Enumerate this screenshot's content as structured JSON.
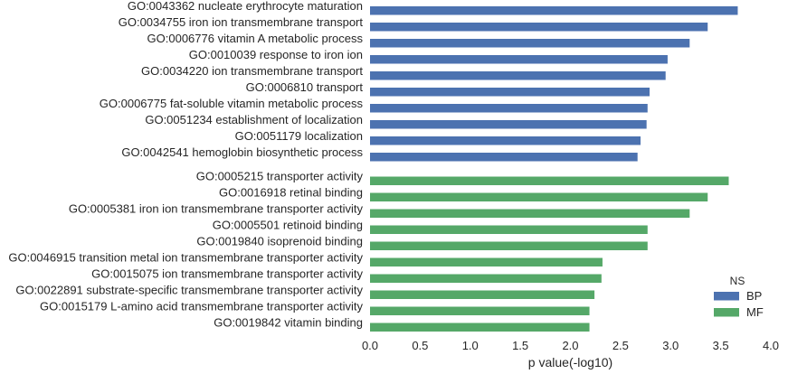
{
  "chart_data": {
    "type": "bar",
    "orientation": "horizontal",
    "xlabel": "p value(-log10)",
    "xlim": [
      0.0,
      4.0
    ],
    "xticks": [
      "0.0",
      "0.5",
      "1.0",
      "1.5",
      "2.0",
      "2.5",
      "3.0",
      "3.5",
      "4.0"
    ],
    "grid": false,
    "legend": {
      "title": "NS",
      "placement": "bottom-right",
      "entries": [
        {
          "name": "BP",
          "color": "#4c72b0"
        },
        {
          "name": "MF",
          "color": "#55a868"
        }
      ]
    },
    "bars": [
      {
        "label": "GO:0043362 nucleate erythrocyte maturation",
        "value": 3.67,
        "group": "BP"
      },
      {
        "label": "GO:0034755 iron ion transmembrane transport",
        "value": 3.37,
        "group": "BP"
      },
      {
        "label": "GO:0006776 vitamin A metabolic process",
        "value": 3.19,
        "group": "BP"
      },
      {
        "label": "GO:0010039 response to iron ion",
        "value": 2.97,
        "group": "BP"
      },
      {
        "label": "GO:0034220 ion transmembrane transport",
        "value": 2.95,
        "group": "BP"
      },
      {
        "label": "GO:0006810 transport",
        "value": 2.79,
        "group": "BP"
      },
      {
        "label": "GO:0006775 fat-soluble vitamin metabolic process",
        "value": 2.77,
        "group": "BP"
      },
      {
        "label": "GO:0051234 establishment of localization",
        "value": 2.76,
        "group": "BP"
      },
      {
        "label": "GO:0051179 localization",
        "value": 2.7,
        "group": "BP"
      },
      {
        "label": "GO:0042541 hemoglobin biosynthetic process",
        "value": 2.67,
        "group": "BP"
      },
      {
        "label": "GO:0005215 transporter activity",
        "value": 3.58,
        "group": "MF"
      },
      {
        "label": "GO:0016918 retinal binding",
        "value": 3.37,
        "group": "MF"
      },
      {
        "label": "GO:0005381 iron ion transmembrane transporter activity",
        "value": 3.19,
        "group": "MF"
      },
      {
        "label": "GO:0005501 retinoid binding",
        "value": 2.77,
        "group": "MF"
      },
      {
        "label": "GO:0019840 isoprenoid binding",
        "value": 2.77,
        "group": "MF"
      },
      {
        "label": "GO:0046915 transition metal ion transmembrane transporter activity",
        "value": 2.32,
        "group": "MF"
      },
      {
        "label": "GO:0015075 ion transmembrane transporter activity",
        "value": 2.31,
        "group": "MF"
      },
      {
        "label": "GO:0022891 substrate-specific transmembrane transporter activity",
        "value": 2.24,
        "group": "MF"
      },
      {
        "label": "GO:0015179 L-amino acid transmembrane transporter activity",
        "value": 2.19,
        "group": "MF"
      },
      {
        "label": "GO:0019842 vitamin binding",
        "value": 2.19,
        "group": "MF"
      }
    ]
  }
}
